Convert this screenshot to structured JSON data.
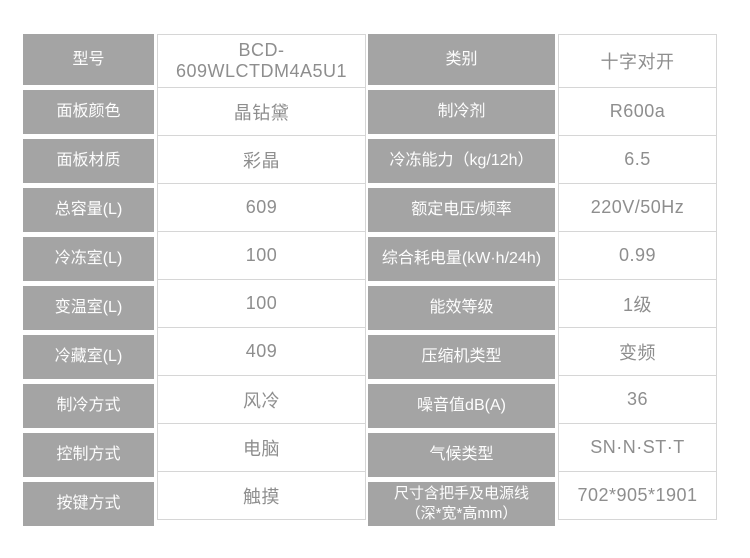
{
  "colors": {
    "page_background": "#ffffff",
    "label_cell_background": "#a4a4a4",
    "label_text": "#fdfdfd",
    "value_text": "#8e8e8e",
    "cell_border": "#d6d6d6"
  },
  "table": {
    "left": [
      {
        "label": "型号",
        "value": "BCD-609WLCTDM4A5U1"
      },
      {
        "label": "面板颜色",
        "value": "晶钻黛"
      },
      {
        "label": "面板材质",
        "value": "彩晶"
      },
      {
        "label": "总容量(L)",
        "value": "609"
      },
      {
        "label": "冷冻室(L)",
        "value": "100"
      },
      {
        "label": "变温室(L)",
        "value": "100"
      },
      {
        "label": "冷藏室(L)",
        "value": "409"
      },
      {
        "label": "制冷方式",
        "value": "风冷"
      },
      {
        "label": "控制方式",
        "value": "电脑"
      },
      {
        "label": "按键方式",
        "value": "触摸"
      }
    ],
    "right": [
      {
        "label": "类别",
        "value": "十字对开"
      },
      {
        "label": "制冷剂",
        "value": "R600a"
      },
      {
        "label": "冷冻能力（kg/12h）",
        "value": "6.5"
      },
      {
        "label": "额定电压/频率",
        "value": "220V/50Hz"
      },
      {
        "label": "综合耗电量(kW·h/24h)",
        "value": "0.99"
      },
      {
        "label": "能效等级",
        "value": "1级"
      },
      {
        "label": "压缩机类型",
        "value": "变频"
      },
      {
        "label": "噪音值dB(A)",
        "value": "36"
      },
      {
        "label": "气候类型",
        "value": "SN·N·ST·T"
      },
      {
        "label": "尺寸含把手及电源线",
        "label2": "（深*宽*高mm）",
        "value": "702*905*1901"
      }
    ]
  }
}
